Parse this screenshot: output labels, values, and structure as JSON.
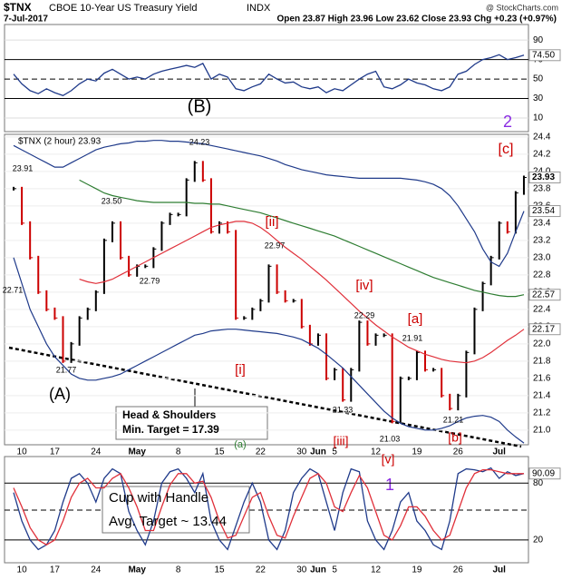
{
  "header": {
    "symbol": "$TNX",
    "name": "CBOE 10-Year US Treasury Yield",
    "exchange": "INDX",
    "date": "7-Jul-2017",
    "quote": "Open 23.87 High 23.96 Low 23.62 Close 23.93 Chg +0.23 (+0.97%)",
    "watermark": "@ StockCharts.com"
  },
  "chart_data": [
    {
      "type": "line",
      "series": [
        {
          "color": "#1f3a8a",
          "values": [
            55,
            45,
            38,
            35,
            40,
            36,
            33,
            38,
            45,
            50,
            48,
            56,
            60,
            55,
            50,
            52,
            50,
            55,
            58,
            60,
            62,
            64,
            62,
            66,
            50,
            55,
            52,
            40,
            38,
            42,
            45,
            55,
            50,
            46,
            47,
            42,
            40,
            42,
            36,
            40,
            38,
            44,
            50,
            55,
            58,
            42,
            40,
            44,
            50,
            46,
            44,
            40,
            38,
            42,
            55,
            58,
            65,
            70,
            72,
            75,
            70,
            72,
            74.5
          ],
          "value_labels": [
            null,
            null,
            null,
            null,
            null,
            null,
            null,
            null,
            null,
            null,
            null,
            null,
            null,
            null,
            null,
            null,
            null,
            null,
            null,
            null,
            null,
            null,
            null,
            null,
            null,
            null,
            null,
            null,
            null,
            null,
            null,
            null,
            null,
            null,
            null,
            null,
            null,
            null,
            null,
            null,
            null,
            null,
            null,
            null,
            null,
            null,
            null,
            null,
            null,
            null,
            null,
            null,
            null,
            null,
            null,
            null,
            null,
            null,
            null,
            null,
            null,
            null,
            "74.50"
          ]
        }
      ],
      "ylim": [
        -4,
        106
      ],
      "yticks": [
        90,
        70,
        50,
        30,
        10
      ],
      "annotations": [
        {
          "text": "(B)",
          "color": "#000000"
        },
        {
          "text": "2",
          "color": "#8a2be2"
        }
      ]
    },
    {
      "type": "price",
      "legend": "$TNX (2 hour) 23.93",
      "categories": [
        null,
        "10",
        null,
        null,
        null,
        "17",
        null,
        null,
        null,
        null,
        "24",
        null,
        null,
        null,
        null,
        "May",
        null,
        null,
        null,
        null,
        "8",
        null,
        null,
        null,
        null,
        "15",
        null,
        null,
        null,
        null,
        "22",
        null,
        null,
        null,
        null,
        "30",
        null,
        "Jun",
        null,
        "5",
        null,
        null,
        null,
        null,
        "12",
        null,
        null,
        null,
        null,
        "19",
        null,
        null,
        null,
        null,
        "26",
        null,
        null,
        null,
        null,
        "Jul",
        null,
        null,
        null
      ],
      "series": [
        {
          "color": "#000000",
          "down_color": "#cc0000",
          "last_value_tag": true,
          "values": [
            23.8,
            23.4,
            23.0,
            22.6,
            22.4,
            22.3,
            21.8,
            22.0,
            22.3,
            22.4,
            22.6,
            23.2,
            23.4,
            23.0,
            22.8,
            22.9,
            22.9,
            23.1,
            23.4,
            23.5,
            23.5,
            23.9,
            24.1,
            23.9,
            23.3,
            23.4,
            23.3,
            22.3,
            22.3,
            22.4,
            22.5,
            22.9,
            22.6,
            22.5,
            22.5,
            22.2,
            22.0,
            22.1,
            21.6,
            21.7,
            21.35,
            21.7,
            22.25,
            22.0,
            22.1,
            22.1,
            21.1,
            21.6,
            21.6,
            21.9,
            21.7,
            21.7,
            21.4,
            21.25,
            21.4,
            21.9,
            22.4,
            22.7,
            23.0,
            23.4,
            23.3,
            23.75,
            23.93
          ]
        },
        {
          "color": "#e0303a",
          "last_value_tag": true,
          "values": [
            null,
            null,
            null,
            null,
            null,
            null,
            null,
            null,
            22.75,
            22.72,
            22.7,
            22.72,
            22.75,
            22.8,
            22.85,
            22.9,
            22.95,
            23.0,
            23.05,
            23.1,
            23.15,
            23.2,
            23.25,
            23.3,
            23.35,
            23.38,
            23.4,
            23.42,
            23.42,
            23.4,
            23.35,
            23.28,
            23.2,
            23.12,
            23.05,
            22.98,
            22.9,
            22.82,
            22.74,
            22.65,
            22.56,
            22.47,
            22.38,
            22.3,
            22.22,
            22.15,
            22.08,
            22.02,
            21.96,
            21.92,
            21.88,
            21.85,
            21.82,
            21.8,
            21.79,
            21.78,
            21.8,
            21.84,
            21.9,
            21.97,
            22.04,
            22.1,
            22.17
          ]
        },
        {
          "color": "#2e7d32",
          "last_value_tag": true,
          "values": [
            null,
            null,
            null,
            null,
            null,
            null,
            null,
            null,
            23.9,
            23.85,
            23.8,
            23.75,
            23.72,
            23.7,
            23.68,
            23.66,
            23.65,
            23.64,
            23.64,
            23.64,
            23.64,
            23.64,
            23.63,
            23.63,
            23.62,
            23.62,
            23.6,
            23.58,
            23.56,
            23.54,
            23.52,
            23.49,
            23.46,
            23.43,
            23.4,
            23.37,
            23.34,
            23.31,
            23.28,
            23.25,
            23.21,
            23.17,
            23.13,
            23.09,
            23.05,
            23.01,
            22.97,
            22.93,
            22.89,
            22.85,
            22.81,
            22.77,
            22.74,
            22.71,
            22.68,
            22.65,
            22.62,
            22.6,
            22.58,
            22.56,
            22.55,
            22.55,
            22.57
          ]
        },
        {
          "color": "#1f3a8a",
          "last_value_tag": true,
          "values": [
            24.3,
            24.25,
            24.2,
            24.15,
            24.1,
            24.05,
            24.05,
            24.1,
            24.15,
            24.2,
            24.25,
            24.28,
            24.3,
            24.32,
            24.33,
            24.35,
            24.35,
            24.36,
            24.36,
            24.35,
            24.35,
            24.34,
            24.33,
            24.32,
            24.3,
            24.28,
            24.26,
            24.24,
            24.22,
            24.2,
            24.18,
            24.15,
            24.12,
            24.08,
            24.05,
            24.02,
            24.0,
            23.98,
            23.96,
            23.95,
            23.94,
            23.93,
            23.92,
            23.92,
            23.92,
            23.92,
            23.92,
            23.92,
            23.91,
            23.9,
            23.88,
            23.85,
            23.8,
            23.72,
            23.6,
            23.45,
            23.3,
            23.1,
            22.95,
            22.9,
            23.05,
            23.3,
            23.54
          ]
        },
        {
          "color": "#1f3a8a",
          "values": [
            23.0,
            22.7,
            22.4,
            22.2,
            22.0,
            21.85,
            21.75,
            21.65,
            21.6,
            21.58,
            21.58,
            21.6,
            21.62,
            21.65,
            21.7,
            21.75,
            21.8,
            21.85,
            21.9,
            21.95,
            22.0,
            22.05,
            22.1,
            22.12,
            22.15,
            22.16,
            22.17,
            22.17,
            22.16,
            22.15,
            22.14,
            22.13,
            22.12,
            22.1,
            22.08,
            22.05,
            22.0,
            21.95,
            21.88,
            21.8,
            21.72,
            21.62,
            21.52,
            21.42,
            21.32,
            21.22,
            21.14,
            21.08,
            21.04,
            21.02,
            21.0,
            21.0,
            21.02,
            21.05,
            21.1,
            21.14,
            21.16,
            21.17,
            21.15,
            21.1,
            21.0,
            20.92,
            20.85
          ]
        }
      ],
      "ylim": [
        20.83,
        24.43
      ],
      "yticks": [
        {
          "value": 24.4,
          "label": "24.4"
        },
        {
          "value": 24.2,
          "label": "24.2"
        },
        {
          "value": 24.0,
          "label": "24.0"
        },
        {
          "value": 23.8,
          "label": "23.8"
        },
        {
          "value": 23.6,
          "label": "23.6"
        },
        {
          "value": 23.4,
          "label": "23.4"
        },
        {
          "value": 23.2,
          "label": "23.2"
        },
        {
          "value": 23.0,
          "label": "23.0"
        },
        {
          "value": 22.8,
          "label": "22.8"
        },
        {
          "value": 22.6,
          "label": "22.6"
        },
        {
          "value": 22.4,
          "label": "22.4"
        },
        {
          "value": 22.2,
          "label": "22.2"
        },
        {
          "value": 22.0,
          "label": "22.0"
        },
        {
          "value": 21.8,
          "label": "21.8"
        },
        {
          "value": 21.6,
          "label": "21.6"
        },
        {
          "value": 21.4,
          "label": "21.4"
        },
        {
          "value": 21.2,
          "label": "21.2"
        },
        {
          "value": 21.0,
          "label": "21.0"
        }
      ],
      "point_labels": [
        "23.91",
        "24.23",
        "23.50",
        "22.79",
        "22.71",
        "21.77",
        "22.97",
        "22.29",
        "21.91",
        "21.33",
        "21.03",
        "21.21"
      ],
      "annotations": [
        {
          "text": "[c]",
          "color": "#cc0000"
        },
        {
          "text": "[ii]",
          "color": "#cc0000"
        },
        {
          "text": "[iv]",
          "color": "#cc0000"
        },
        {
          "text": "[a]",
          "color": "#cc0000"
        },
        {
          "text": "[i]",
          "color": "#cc0000"
        },
        {
          "text": "[iii]",
          "color": "#cc0000"
        },
        {
          "text": "[v]",
          "color": "#cc0000"
        },
        {
          "text": "[b]",
          "color": "#cc0000"
        },
        {
          "text": "(A)",
          "color": "#000000"
        },
        {
          "text": "1",
          "color": "#8a2be2"
        },
        {
          "text": "(a)",
          "color": "#2e7d32"
        }
      ],
      "notes": [
        "Head & Shoulders",
        "Min. Target = 17.39"
      ]
    },
    {
      "type": "line",
      "categories": [
        null,
        "10",
        null,
        null,
        null,
        "17",
        null,
        null,
        null,
        null,
        "24",
        null,
        null,
        null,
        null,
        "May",
        null,
        null,
        null,
        null,
        "8",
        null,
        null,
        null,
        null,
        "15",
        null,
        null,
        null,
        null,
        "22",
        null,
        null,
        null,
        null,
        "30",
        null,
        "Jun",
        null,
        "5",
        null,
        null,
        null,
        null,
        "12",
        null,
        null,
        null,
        null,
        "19",
        null,
        null,
        null,
        null,
        "26",
        null,
        null,
        null,
        null,
        "Jul",
        null,
        null,
        null
      ],
      "series": [
        {
          "color": "#1f3a8a",
          "last_value_tag": true,
          "values": [
            70,
            40,
            20,
            10,
            15,
            30,
            60,
            85,
            90,
            80,
            60,
            85,
            95,
            90,
            50,
            30,
            15,
            40,
            80,
            92,
            95,
            85,
            70,
            90,
            40,
            20,
            10,
            35,
            60,
            80,
            60,
            20,
            10,
            30,
            70,
            85,
            95,
            90,
            60,
            30,
            70,
            95,
            92,
            40,
            20,
            10,
            30,
            60,
            70,
            40,
            30,
            15,
            10,
            40,
            90,
            95,
            94,
            92,
            96,
            85,
            92,
            88,
            90.09
          ]
        },
        {
          "color": "#e0303a",
          "values": [
            75,
            55,
            33,
            20,
            15,
            20,
            40,
            65,
            80,
            85,
            75,
            75,
            85,
            90,
            75,
            55,
            30,
            30,
            55,
            78,
            90,
            90,
            80,
            82,
            65,
            40,
            22,
            25,
            45,
            65,
            70,
            45,
            25,
            22,
            45,
            65,
            85,
            90,
            80,
            55,
            50,
            70,
            88,
            75,
            50,
            25,
            20,
            35,
            55,
            55,
            45,
            30,
            20,
            25,
            50,
            75,
            90,
            94,
            94,
            92,
            90,
            90,
            90
          ]
        }
      ],
      "ylim": [
        -4,
        108
      ],
      "yticks": [
        80,
        20
      ],
      "notes": [
        "Cup with Handle",
        "Avg. Target ~ 13.44"
      ]
    }
  ]
}
